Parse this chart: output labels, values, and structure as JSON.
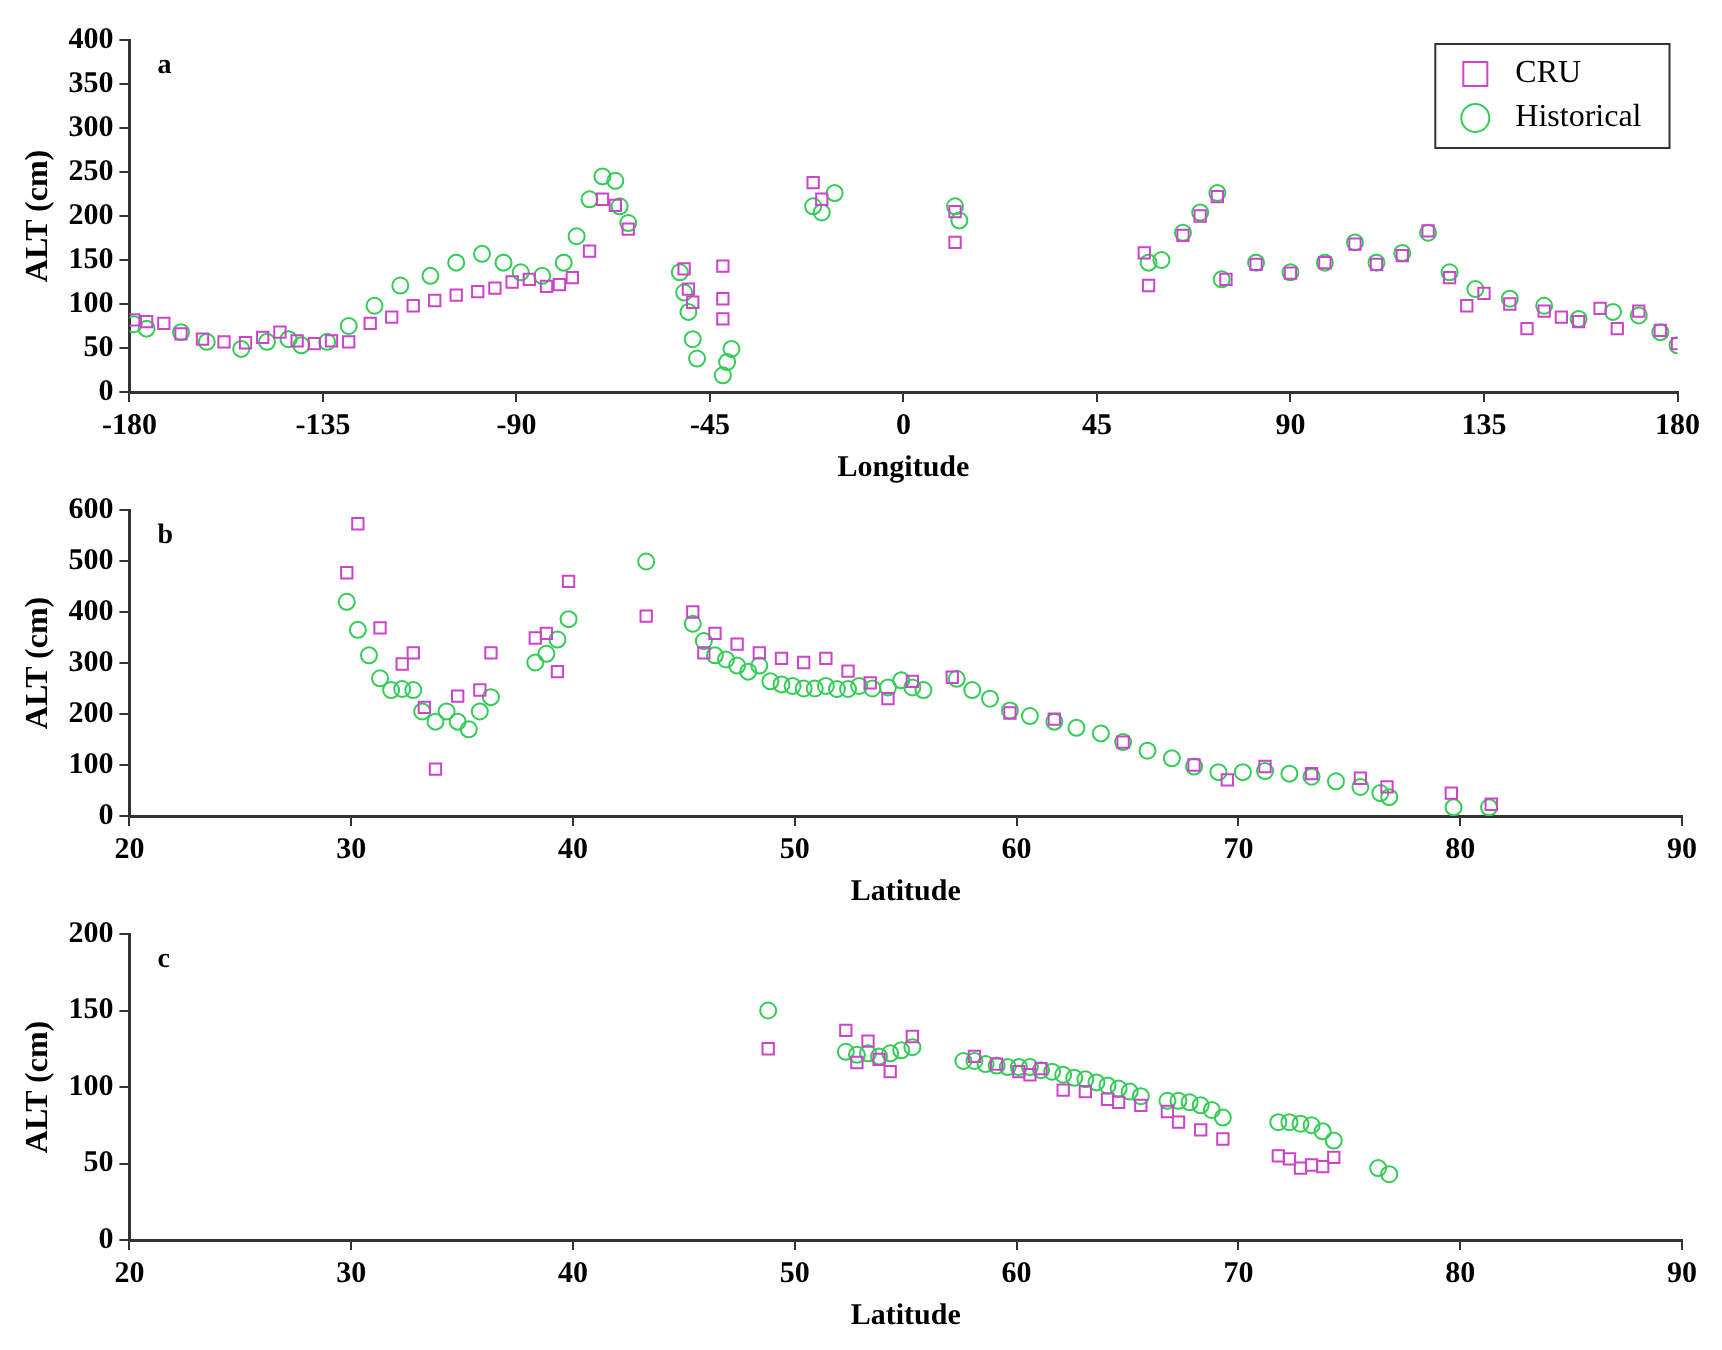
{
  "chart_data": [
    {
      "type": "scatter",
      "xlabel": "Longitude",
      "ylabel": "ALT (cm)",
      "annotations": [
        "a"
      ],
      "xlim": [
        -180,
        180
      ],
      "xticks": [
        -180,
        -135,
        -90,
        -45,
        0,
        45,
        90,
        135,
        180
      ],
      "ylim": [
        0,
        400
      ],
      "yticks": [
        0,
        50,
        100,
        150,
        200,
        250,
        300,
        350,
        400
      ],
      "grid": false,
      "legend": "top right",
      "series": [
        {
          "name": "CRU",
          "color": "#cc44cc",
          "marker": "square",
          "x": [
            -179,
            -176,
            -172,
            -168,
            -163,
            -158,
            -153,
            -149,
            -145,
            -141,
            -137,
            -133,
            -129,
            -124,
            -119,
            -114,
            -109,
            -104,
            -99,
            -95,
            -91,
            -87,
            -83,
            -80,
            -77,
            -73,
            -70,
            -67,
            -64,
            -51,
            -50,
            -49,
            -42,
            -42,
            -42,
            -21,
            -19,
            12,
            12,
            56,
            57,
            65,
            69,
            73,
            75,
            82,
            90,
            98,
            105,
            110,
            116,
            122,
            127,
            131,
            135,
            141,
            145,
            149,
            153,
            157,
            162,
            166,
            171,
            176,
            180
          ],
          "values": [
            82,
            80,
            78,
            66,
            60,
            57,
            56,
            62,
            68,
            58,
            55,
            58,
            57,
            78,
            85,
            98,
            104,
            110,
            114,
            118,
            125,
            128,
            120,
            122,
            130,
            160,
            219,
            212,
            185,
            140,
            117,
            102,
            143,
            106,
            83,
            238,
            219,
            205,
            170,
            158,
            121,
            178,
            200,
            222,
            128,
            145,
            135,
            147,
            168,
            145,
            155,
            183,
            130,
            98,
            112,
            100,
            72,
            92,
            85,
            80,
            95,
            72,
            92,
            70,
            55
          ]
        },
        {
          "name": "Historical",
          "color": "#33cc55",
          "marker": "circle",
          "x": [
            -179,
            -176,
            -168,
            -162,
            -154,
            -148,
            -143,
            -140,
            -134,
            -129,
            -123,
            -117,
            -110,
            -104,
            -98,
            -93,
            -89,
            -84,
            -79,
            -76,
            -73,
            -70,
            -67,
            -66,
            -64,
            -52,
            -51,
            -50,
            -49,
            -48,
            -42,
            -41,
            -40,
            -21,
            -19,
            -16,
            12,
            13,
            57,
            60,
            65,
            69,
            73,
            74,
            82,
            90,
            98,
            105,
            110,
            116,
            122,
            127,
            133,
            141,
            149,
            157,
            165,
            171,
            176,
            180
          ],
          "values": [
            77,
            72,
            68,
            57,
            49,
            57,
            60,
            53,
            57,
            75,
            98,
            121,
            132,
            147,
            157,
            147,
            136,
            132,
            147,
            177,
            219,
            245,
            240,
            211,
            192,
            136,
            113,
            91,
            60,
            38,
            19,
            34,
            49,
            211,
            204,
            226,
            211,
            195,
            147,
            150,
            181,
            204,
            226,
            128,
            147,
            136,
            147,
            170,
            147,
            158,
            181,
            136,
            117,
            106,
            98,
            83,
            91,
            87,
            68,
            53
          ]
        }
      ]
    },
    {
      "type": "scatter",
      "xlabel": "Latitude",
      "ylabel": "ALT (cm)",
      "annotations": [
        "b"
      ],
      "xlim": [
        20,
        90
      ],
      "xticks": [
        20,
        30,
        40,
        50,
        60,
        70,
        80,
        90
      ],
      "ylim": [
        0,
        600
      ],
      "yticks": [
        0,
        100,
        200,
        300,
        400,
        500,
        600
      ],
      "grid": false,
      "legend": false,
      "series": [
        {
          "color": "#cc44cc",
          "marker": "square",
          "x": [
            29.8,
            30.3,
            31.3,
            32.3,
            32.8,
            33.3,
            33.8,
            34.8,
            35.8,
            36.3,
            38.3,
            38.8,
            39.3,
            39.8,
            43.3,
            45.4,
            45.9,
            46.4,
            47.4,
            48.4,
            49.4,
            50.4,
            51.4,
            52.4,
            53.4,
            54.2,
            55.3,
            57.1,
            59.7,
            61.7,
            64.8,
            68.0,
            69.5,
            71.2,
            73.3,
            75.5,
            76.7,
            79.6,
            81.4
          ],
          "values": [
            477,
            573,
            369,
            298,
            320,
            213,
            92,
            235,
            247,
            320,
            349,
            358,
            283,
            460,
            392,
            400,
            320,
            358,
            337,
            320,
            309,
            301,
            309,
            284,
            261,
            230,
            264,
            272,
            202,
            190,
            145,
            100,
            71,
            97,
            83,
            74,
            57,
            45,
            23
          ]
        },
        {
          "color": "#33cc55",
          "marker": "circle",
          "x": [
            29.8,
            30.3,
            30.8,
            31.3,
            31.8,
            32.3,
            32.8,
            33.2,
            33.8,
            34.3,
            34.8,
            35.3,
            35.8,
            36.3,
            38.3,
            38.8,
            39.3,
            39.8,
            43.3,
            45.4,
            45.9,
            46.4,
            46.9,
            47.4,
            47.9,
            48.4,
            48.9,
            49.4,
            49.9,
            50.4,
            50.9,
            51.4,
            51.9,
            52.4,
            52.9,
            53.5,
            54.2,
            54.8,
            55.3,
            55.8,
            57.3,
            58.0,
            58.8,
            59.7,
            60.6,
            61.7,
            62.7,
            63.8,
            64.8,
            65.9,
            67.0,
            68.0,
            69.1,
            70.2,
            71.2,
            72.3,
            73.3,
            74.4,
            75.5,
            76.4,
            76.8,
            79.7,
            81.3
          ],
          "values": [
            420,
            365,
            315,
            270,
            247,
            249,
            247,
            205,
            185,
            205,
            185,
            170,
            205,
            233,
            301,
            318,
            346,
            386,
            499,
            377,
            343,
            315,
            307,
            295,
            283,
            295,
            264,
            258,
            255,
            250,
            250,
            255,
            249,
            249,
            255,
            250,
            252,
            266,
            252,
            247,
            269,
            247,
            230,
            207,
            196,
            185,
            173,
            162,
            145,
            128,
            113,
            97,
            86,
            86,
            88,
            83,
            77,
            68,
            57,
            45,
            37,
            17,
            17
          ]
        }
      ]
    },
    {
      "type": "scatter",
      "xlabel": "Latitude",
      "ylabel": "ALT (cm)",
      "annotations": [
        "c"
      ],
      "xlim": [
        20,
        90
      ],
      "xticks": [
        20,
        30,
        40,
        50,
        60,
        70,
        80,
        90
      ],
      "ylim": [
        0,
        200
      ],
      "yticks": [
        0,
        50,
        100,
        150,
        200
      ],
      "grid": false,
      "legend": false,
      "series": [
        {
          "color": "#cc44cc",
          "marker": "square",
          "x": [
            48.8,
            52.3,
            52.8,
            53.3,
            53.8,
            54.3,
            55.3,
            58.1,
            59.1,
            60.1,
            60.6,
            61.1,
            62.1,
            63.1,
            64.1,
            64.6,
            65.6,
            66.8,
            67.3,
            68.3,
            69.3,
            71.8,
            72.3,
            72.8,
            73.3,
            73.8,
            74.3
          ],
          "values": [
            125,
            137,
            116,
            130,
            118,
            110,
            133,
            120,
            115,
            110,
            108,
            112,
            98,
            97,
            92,
            90,
            88,
            84,
            77,
            72,
            66,
            55,
            53,
            47,
            49,
            48,
            54
          ]
        },
        {
          "color": "#33cc55",
          "marker": "circle",
          "x": [
            48.8,
            52.3,
            52.8,
            53.3,
            53.8,
            54.3,
            54.8,
            55.3,
            57.6,
            58.1,
            58.6,
            59.1,
            59.6,
            60.1,
            60.6,
            61.1,
            61.6,
            62.1,
            62.6,
            63.1,
            63.6,
            64.1,
            64.6,
            65.1,
            65.6,
            66.8,
            67.3,
            67.8,
            68.3,
            68.8,
            69.3,
            71.8,
            72.3,
            72.8,
            73.3,
            73.8,
            74.3,
            76.3,
            76.8
          ],
          "values": [
            150,
            123,
            121,
            122,
            120,
            122,
            124,
            126,
            117,
            117,
            115,
            114,
            113,
            113,
            113,
            111,
            110,
            108,
            106,
            105,
            103,
            101,
            99,
            97,
            94,
            91,
            91,
            90,
            88,
            85,
            80,
            77,
            77,
            76,
            75,
            71,
            65,
            47,
            43
          ]
        }
      ]
    }
  ]
}
